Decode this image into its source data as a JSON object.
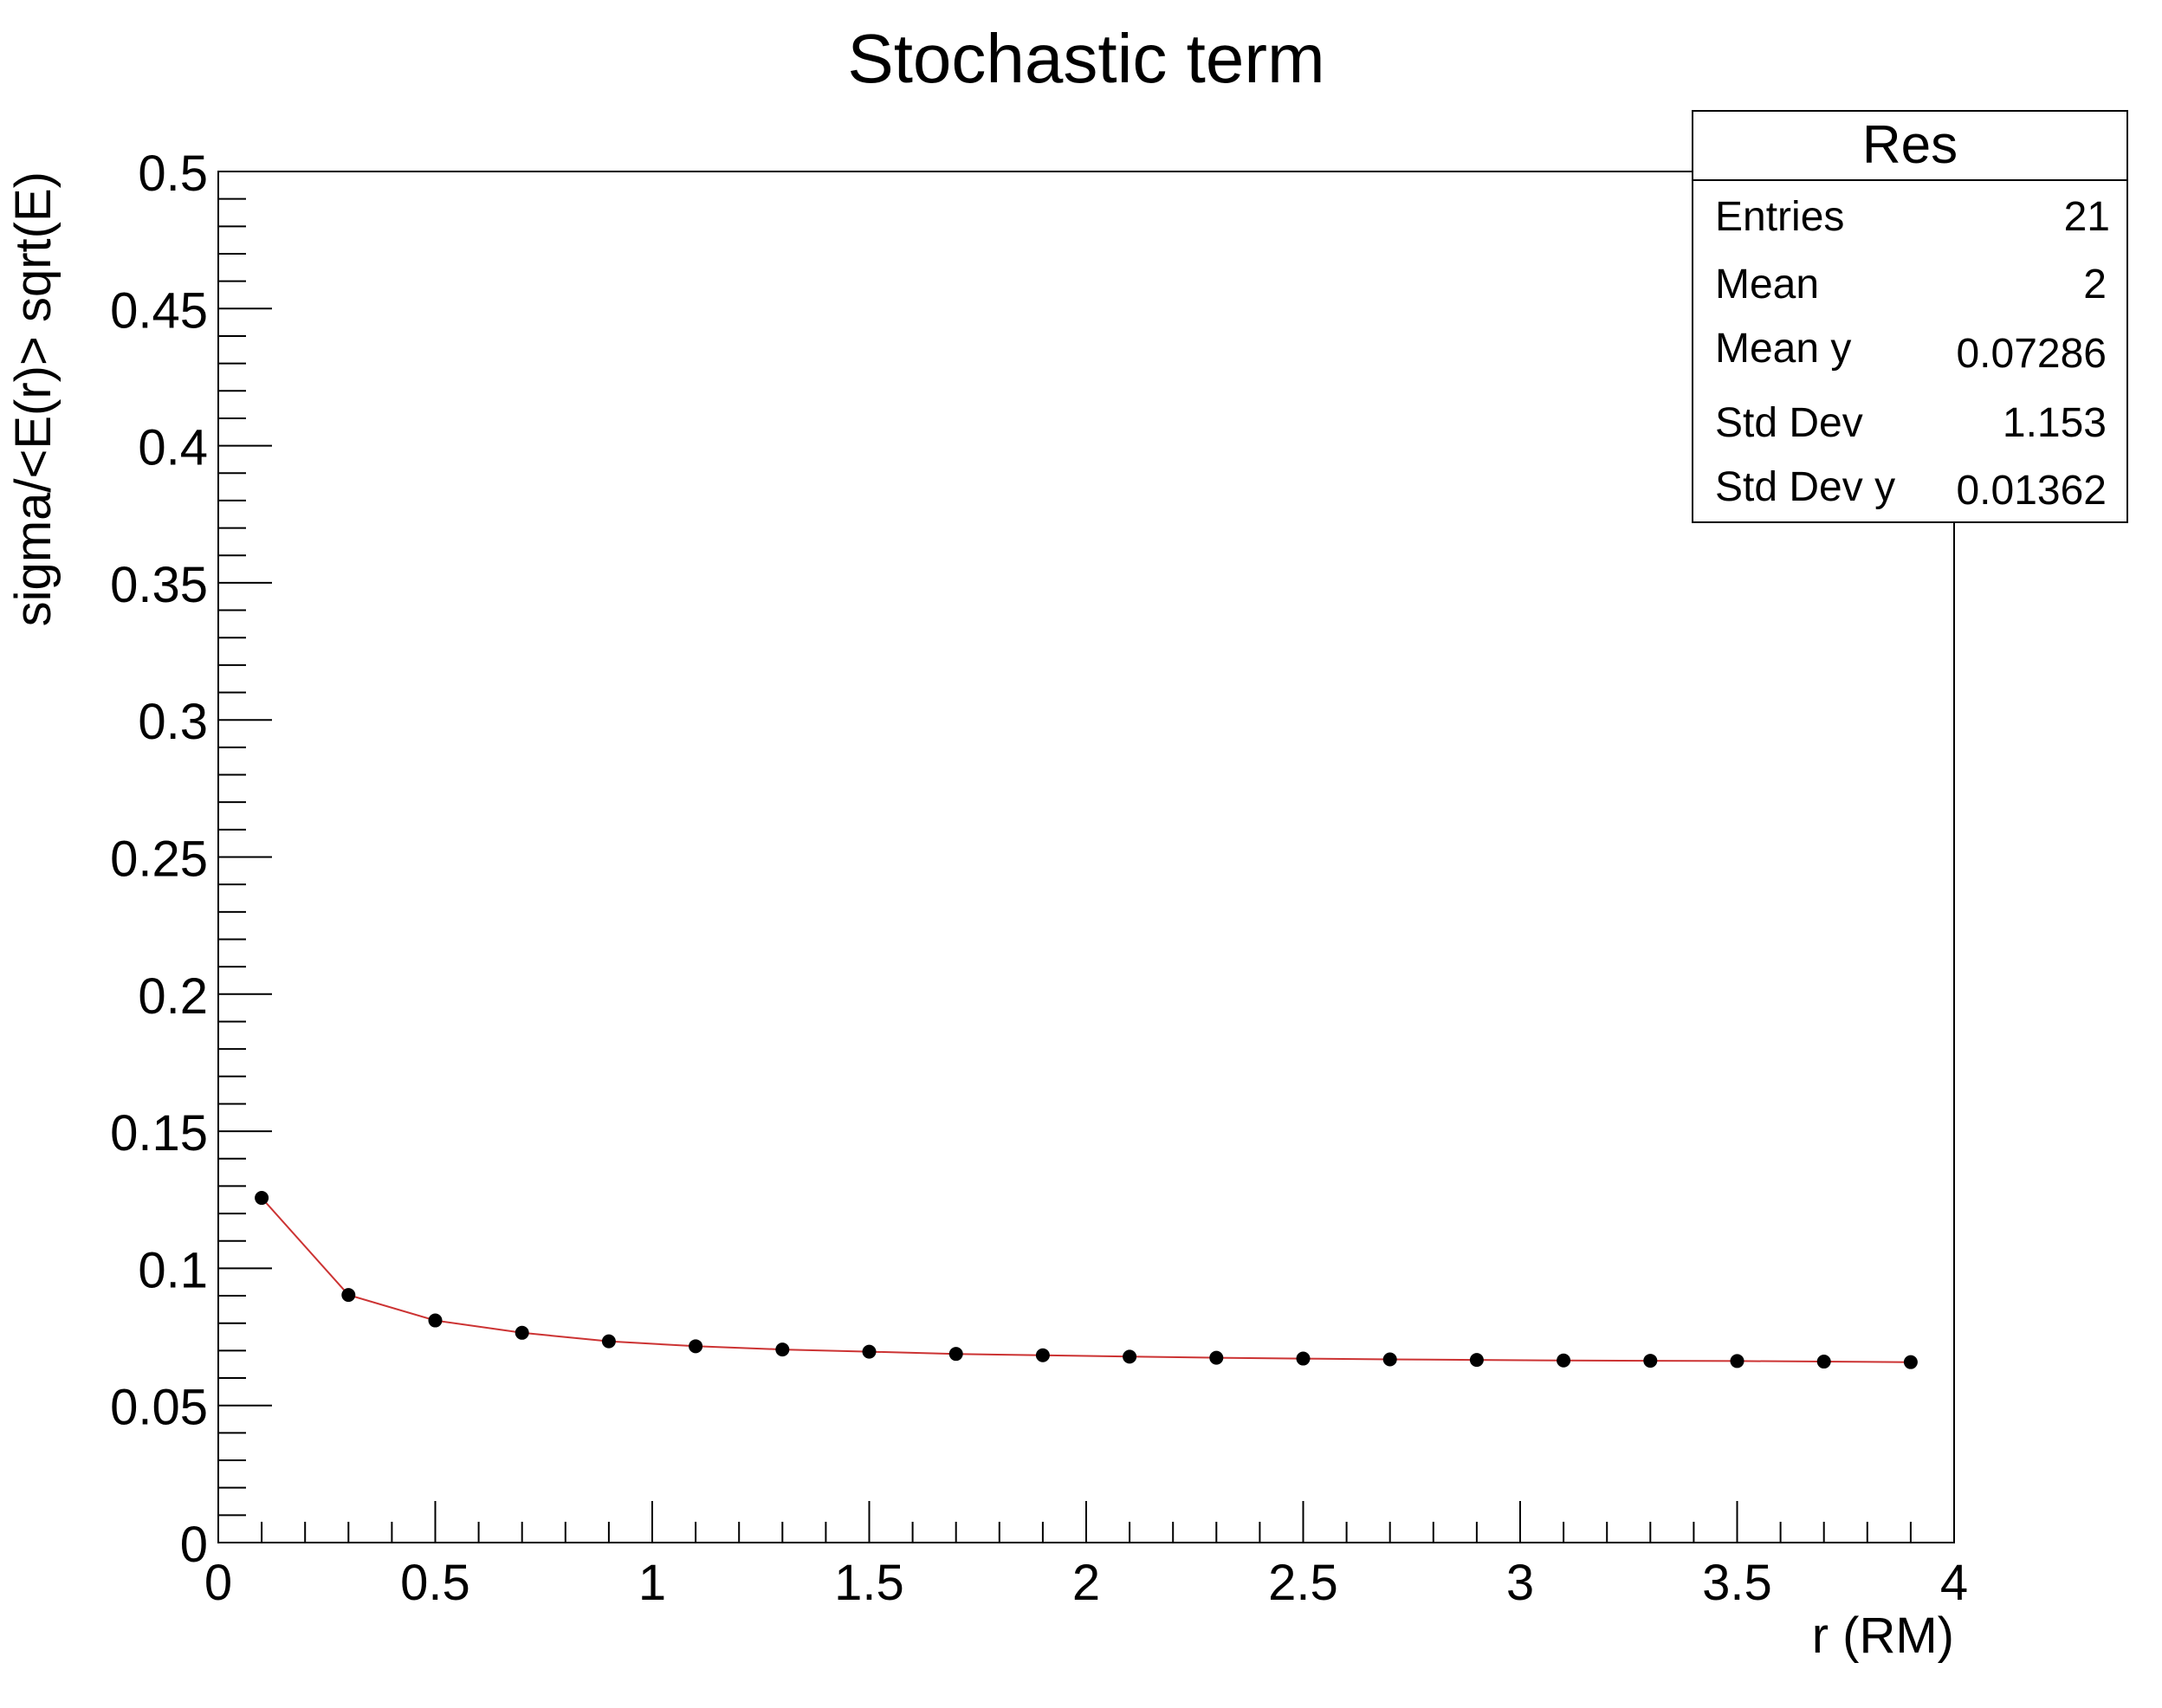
{
  "chart_data": {
    "type": "scatter",
    "title": "Stochastic term",
    "xlabel": "r (RM)",
    "ylabel": "sigma/<E(r)> sqrt(E)",
    "xlim": [
      0,
      4
    ],
    "ylim": [
      0,
      0.5
    ],
    "x_ticks": [
      "0",
      "0.5",
      "1",
      "1.5",
      "2",
      "2.5",
      "3",
      "3.5",
      "4"
    ],
    "y_ticks": [
      "0",
      "0.05",
      "0.1",
      "0.15",
      "0.2",
      "0.25",
      "0.3",
      "0.35",
      "0.4",
      "0.45",
      "0.5"
    ],
    "grid": false,
    "colors": {
      "points": "#000000",
      "line": "#cc3333",
      "frame": "#000000"
    },
    "series": [
      {
        "x": [
          0.1,
          0.3,
          0.5,
          0.7,
          0.9,
          1.1,
          1.3,
          1.5,
          1.7,
          1.9,
          2.1,
          2.3,
          2.5,
          2.7,
          2.9,
          3.1,
          3.3,
          3.5,
          3.7,
          3.9
        ],
        "y": [
          0.1257,
          0.0903,
          0.081,
          0.0765,
          0.0734,
          0.0716,
          0.0704,
          0.0696,
          0.0688,
          0.0683,
          0.0678,
          0.0674,
          0.0671,
          0.0668,
          0.0666,
          0.0664,
          0.0663,
          0.0662,
          0.066,
          0.0658
        ]
      }
    ],
    "stats_box": {
      "title": "Res",
      "rows": [
        {
          "key": "Entries",
          "value": "21"
        },
        {
          "key": "Mean",
          "value": "2"
        },
        {
          "key": "Mean y",
          "value": "0.07286"
        },
        {
          "key": "Std Dev",
          "value": "1.153"
        },
        {
          "key": "Std Dev y",
          "value": "0.01362"
        }
      ]
    }
  }
}
